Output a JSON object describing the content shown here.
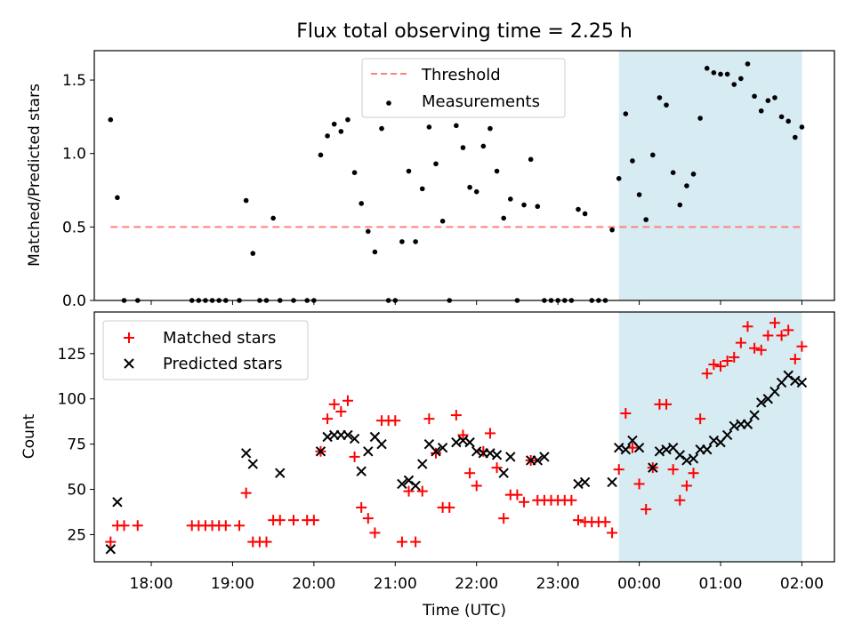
{
  "figure": {
    "title": "Flux total observing time = 2.25 h",
    "xlabel": "Time (UTC)",
    "x_tick_labels": [
      "18:00",
      "19:00",
      "20:00",
      "21:00",
      "22:00",
      "23:00",
      "00:00",
      "01:00",
      "02:00"
    ],
    "colors": {
      "threshold": "#ff8080",
      "span": "#add8e6",
      "matched": "#ff0000",
      "predicted": "#000000",
      "measurement": "#000000"
    }
  },
  "chart_data": [
    {
      "type": "scatter",
      "ylabel": "Matched/Predicted stars",
      "x_unit": "hours after 17:00 UTC",
      "xlim": [
        17.3,
        26.4
      ],
      "ylim": [
        0,
        1.7
      ],
      "y_ticks": [
        0.0,
        0.5,
        1.0,
        1.5
      ],
      "y_tick_labels": [
        "0.0",
        "0.5",
        "1.0",
        "1.5"
      ],
      "shaded_span": {
        "from": "23:45",
        "to": "02:00"
      },
      "legend": {
        "placement": "top-center",
        "entries": [
          "Threshold",
          "Measurements"
        ]
      },
      "threshold": {
        "name": "Threshold",
        "y": 0.5,
        "x_from": "17:30",
        "x_to": "02:00"
      },
      "series": [
        {
          "name": "Measurements",
          "points": [
            [
              "17:30",
              1.23
            ],
            [
              "17:35",
              0.7
            ],
            [
              "17:40",
              0.0
            ],
            [
              "17:50",
              0.0
            ],
            [
              "18:30",
              0.0
            ],
            [
              "18:35",
              0.0
            ],
            [
              "18:40",
              0.0
            ],
            [
              "18:45",
              0.0
            ],
            [
              "18:50",
              0.0
            ],
            [
              "18:55",
              0.0
            ],
            [
              "19:05",
              0.0
            ],
            [
              "19:10",
              0.68
            ],
            [
              "19:15",
              0.32
            ],
            [
              "19:20",
              0.0
            ],
            [
              "19:25",
              0.0
            ],
            [
              "19:30",
              0.56
            ],
            [
              "19:35",
              0.0
            ],
            [
              "19:45",
              0.0
            ],
            [
              "19:55",
              0.0
            ],
            [
              "20:00",
              0.0
            ],
            [
              "20:05",
              0.99
            ],
            [
              "20:10",
              1.12
            ],
            [
              "20:15",
              1.2
            ],
            [
              "20:20",
              1.15
            ],
            [
              "20:25",
              1.23
            ],
            [
              "20:30",
              0.87
            ],
            [
              "20:35",
              0.66
            ],
            [
              "20:40",
              0.47
            ],
            [
              "20:45",
              0.33
            ],
            [
              "20:50",
              1.17
            ],
            [
              "20:55",
              0.0
            ],
            [
              "21:00",
              0.0
            ],
            [
              "21:05",
              0.4
            ],
            [
              "21:10",
              0.88
            ],
            [
              "21:15",
              0.4
            ],
            [
              "21:20",
              0.76
            ],
            [
              "21:25",
              1.18
            ],
            [
              "21:30",
              0.93
            ],
            [
              "21:35",
              0.54
            ],
            [
              "21:40",
              0.0
            ],
            [
              "21:45",
              1.19
            ],
            [
              "21:50",
              1.04
            ],
            [
              "21:55",
              0.77
            ],
            [
              "22:00",
              0.74
            ],
            [
              "22:05",
              1.05
            ],
            [
              "22:10",
              1.17
            ],
            [
              "22:15",
              0.88
            ],
            [
              "22:20",
              0.56
            ],
            [
              "22:25",
              0.69
            ],
            [
              "22:30",
              0.0
            ],
            [
              "22:35",
              0.65
            ],
            [
              "22:40",
              0.96
            ],
            [
              "22:45",
              0.64
            ],
            [
              "22:50",
              0.0
            ],
            [
              "22:55",
              0.0
            ],
            [
              "23:00",
              0.0
            ],
            [
              "23:05",
              0.0
            ],
            [
              "23:10",
              0.0
            ],
            [
              "23:15",
              0.62
            ],
            [
              "23:20",
              0.59
            ],
            [
              "23:25",
              0.0
            ],
            [
              "23:30",
              0.0
            ],
            [
              "23:35",
              0.0
            ],
            [
              "23:40",
              0.48
            ],
            [
              "23:45",
              0.83
            ],
            [
              "23:50",
              1.27
            ],
            [
              "23:55",
              0.95
            ],
            [
              "00:00",
              0.72
            ],
            [
              "00:05",
              0.55
            ],
            [
              "00:10",
              0.99
            ],
            [
              "00:15",
              1.38
            ],
            [
              "00:20",
              1.33
            ],
            [
              "00:25",
              0.87
            ],
            [
              "00:30",
              0.65
            ],
            [
              "00:35",
              0.78
            ],
            [
              "00:40",
              0.86
            ],
            [
              "00:45",
              1.24
            ],
            [
              "00:50",
              1.58
            ],
            [
              "00:55",
              1.55
            ],
            [
              "01:00",
              1.54
            ],
            [
              "01:05",
              1.54
            ],
            [
              "01:10",
              1.47
            ],
            [
              "01:15",
              1.51
            ],
            [
              "01:20",
              1.61
            ],
            [
              "01:25",
              1.39
            ],
            [
              "01:30",
              1.29
            ],
            [
              "01:35",
              1.36
            ],
            [
              "01:40",
              1.38
            ],
            [
              "01:45",
              1.25
            ],
            [
              "01:50",
              1.22
            ],
            [
              "01:55",
              1.11
            ],
            [
              "02:00",
              1.18
            ]
          ]
        }
      ]
    },
    {
      "type": "scatter",
      "ylabel": "Count",
      "x_unit": "hours after 17:00 UTC",
      "xlim": [
        17.3,
        26.4
      ],
      "ylim": [
        10,
        148
      ],
      "y_ticks": [
        25,
        50,
        75,
        100,
        125
      ],
      "y_tick_labels": [
        "25",
        "50",
        "75",
        "100",
        "125"
      ],
      "shaded_span": {
        "from": "23:45",
        "to": "02:00"
      },
      "legend": {
        "placement": "upper-left",
        "entries": [
          "Matched stars",
          "Predicted stars"
        ]
      },
      "series": [
        {
          "name": "Matched stars",
          "marker": "+",
          "points": [
            [
              "17:30",
              21
            ],
            [
              "17:35",
              30
            ],
            [
              "17:40",
              30
            ],
            [
              "17:50",
              30
            ],
            [
              "18:30",
              30
            ],
            [
              "18:35",
              30
            ],
            [
              "18:40",
              30
            ],
            [
              "18:45",
              30
            ],
            [
              "18:50",
              30
            ],
            [
              "18:55",
              30
            ],
            [
              "19:05",
              30
            ],
            [
              "19:10",
              48
            ],
            [
              "19:15",
              21
            ],
            [
              "19:20",
              21
            ],
            [
              "19:25",
              21
            ],
            [
              "19:30",
              33
            ],
            [
              "19:35",
              33
            ],
            [
              "19:45",
              33
            ],
            [
              "19:55",
              33
            ],
            [
              "20:00",
              33
            ],
            [
              "20:05",
              71
            ],
            [
              "20:10",
              89
            ],
            [
              "20:15",
              97
            ],
            [
              "20:20",
              93
            ],
            [
              "20:25",
              99
            ],
            [
              "20:30",
              68
            ],
            [
              "20:35",
              40
            ],
            [
              "20:40",
              34
            ],
            [
              "20:45",
              26
            ],
            [
              "20:50",
              88
            ],
            [
              "20:55",
              88
            ],
            [
              "21:00",
              88
            ],
            [
              "21:05",
              21
            ],
            [
              "21:10",
              49
            ],
            [
              "21:15",
              21
            ],
            [
              "21:20",
              49
            ],
            [
              "21:25",
              89
            ],
            [
              "21:30",
              70
            ],
            [
              "21:35",
              40
            ],
            [
              "21:40",
              40
            ],
            [
              "21:45",
              91
            ],
            [
              "21:50",
              80
            ],
            [
              "21:55",
              59
            ],
            [
              "22:00",
              52
            ],
            [
              "22:05",
              71
            ],
            [
              "22:10",
              81
            ],
            [
              "22:15",
              62
            ],
            [
              "22:20",
              34
            ],
            [
              "22:25",
              47
            ],
            [
              "22:30",
              47
            ],
            [
              "22:35",
              43
            ],
            [
              "22:40",
              66
            ],
            [
              "22:45",
              44
            ],
            [
              "22:50",
              44
            ],
            [
              "22:55",
              44
            ],
            [
              "23:00",
              44
            ],
            [
              "23:05",
              44
            ],
            [
              "23:10",
              44
            ],
            [
              "23:15",
              33
            ],
            [
              "23:20",
              32
            ],
            [
              "23:25",
              32
            ],
            [
              "23:30",
              32
            ],
            [
              "23:35",
              32
            ],
            [
              "23:40",
              26
            ],
            [
              "23:45",
              61
            ],
            [
              "23:50",
              92
            ],
            [
              "23:55",
              73
            ],
            [
              "00:00",
              53
            ],
            [
              "00:05",
              39
            ],
            [
              "00:10",
              62
            ],
            [
              "00:15",
              97
            ],
            [
              "00:20",
              97
            ],
            [
              "00:25",
              61
            ],
            [
              "00:30",
              44
            ],
            [
              "00:35",
              52
            ],
            [
              "00:40",
              59
            ],
            [
              "00:45",
              89
            ],
            [
              "00:50",
              114
            ],
            [
              "00:55",
              119
            ],
            [
              "01:00",
              118
            ],
            [
              "01:05",
              121
            ],
            [
              "01:10",
              123
            ],
            [
              "01:15",
              131
            ],
            [
              "01:20",
              140
            ],
            [
              "01:25",
              128
            ],
            [
              "01:30",
              127
            ],
            [
              "01:35",
              135
            ],
            [
              "01:40",
              142
            ],
            [
              "01:45",
              135
            ],
            [
              "01:50",
              138
            ],
            [
              "01:55",
              122
            ],
            [
              "02:00",
              129
            ]
          ]
        },
        {
          "name": "Predicted stars",
          "marker": "x",
          "points": [
            [
              "17:30",
              17
            ],
            [
              "17:35",
              43
            ],
            [
              "19:10",
              70
            ],
            [
              "19:15",
              64
            ],
            [
              "19:35",
              59
            ],
            [
              "20:05",
              71
            ],
            [
              "20:10",
              79
            ],
            [
              "20:15",
              80
            ],
            [
              "20:20",
              80
            ],
            [
              "20:25",
              80
            ],
            [
              "20:30",
              78
            ],
            [
              "20:35",
              60
            ],
            [
              "20:40",
              71
            ],
            [
              "20:45",
              79
            ],
            [
              "20:50",
              75
            ],
            [
              "21:05",
              53
            ],
            [
              "21:10",
              55
            ],
            [
              "21:15",
              52
            ],
            [
              "21:20",
              64
            ],
            [
              "21:25",
              75
            ],
            [
              "21:30",
              71
            ],
            [
              "21:35",
              73
            ],
            [
              "21:45",
              76
            ],
            [
              "21:50",
              77
            ],
            [
              "21:55",
              76
            ],
            [
              "22:00",
              71
            ],
            [
              "22:05",
              70
            ],
            [
              "22:10",
              70
            ],
            [
              "22:15",
              69
            ],
            [
              "22:20",
              59
            ],
            [
              "22:25",
              68
            ],
            [
              "22:40",
              66
            ],
            [
              "22:45",
              66
            ],
            [
              "22:50",
              68
            ],
            [
              "23:15",
              53
            ],
            [
              "23:20",
              54
            ],
            [
              "23:40",
              54
            ],
            [
              "23:45",
              73
            ],
            [
              "23:50",
              72
            ],
            [
              "23:55",
              77
            ],
            [
              "00:00",
              73
            ],
            [
              "00:10",
              62
            ],
            [
              "00:15",
              71
            ],
            [
              "00:20",
              72
            ],
            [
              "00:25",
              73
            ],
            [
              "00:30",
              69
            ],
            [
              "00:35",
              66
            ],
            [
              "00:40",
              67
            ],
            [
              "00:45",
              72
            ],
            [
              "00:50",
              72
            ],
            [
              "00:55",
              77
            ],
            [
              "01:00",
              76
            ],
            [
              "01:05",
              80
            ],
            [
              "01:10",
              85
            ],
            [
              "01:15",
              86
            ],
            [
              "01:20",
              86
            ],
            [
              "01:25",
              91
            ],
            [
              "01:30",
              98
            ],
            [
              "01:35",
              100
            ],
            [
              "01:40",
              104
            ],
            [
              "01:45",
              109
            ],
            [
              "01:50",
              113
            ],
            [
              "01:55",
              110
            ],
            [
              "02:00",
              109
            ]
          ]
        }
      ]
    }
  ]
}
